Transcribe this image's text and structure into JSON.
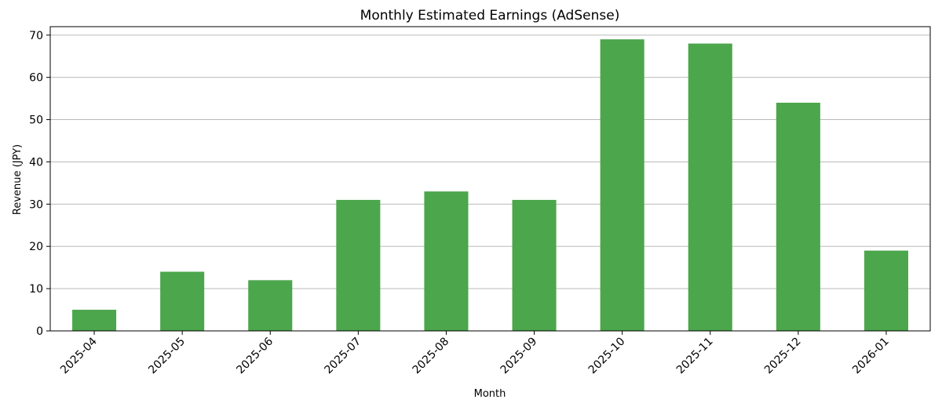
{
  "chart_data": {
    "type": "bar",
    "title": "Monthly Estimated Earnings (AdSense)",
    "xlabel": "Month",
    "ylabel": "Revenue (JPY)",
    "categories": [
      "2025-04",
      "2025-05",
      "2025-06",
      "2025-07",
      "2025-08",
      "2025-09",
      "2025-10",
      "2025-11",
      "2025-12",
      "2026-01"
    ],
    "values": [
      5,
      14,
      12,
      31,
      33,
      31,
      69,
      68,
      54,
      19
    ],
    "ylim": [
      0,
      72
    ],
    "yticks": [
      0,
      10,
      20,
      30,
      40,
      50,
      60,
      70
    ],
    "grid": "y-major",
    "legend": "none",
    "colors": {
      "bar": "#4ca64c",
      "grid": "#b0b0b0",
      "axis": "#000000"
    }
  }
}
